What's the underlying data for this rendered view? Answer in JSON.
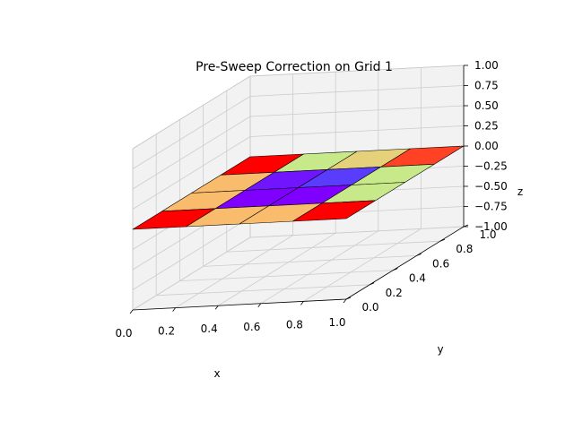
{
  "chart_data": {
    "type": "surface",
    "title": "Pre-Sweep Correction on Grid 1",
    "xlabel": "x",
    "ylabel": "y",
    "zlabel": "z",
    "xlim": [
      0,
      1
    ],
    "ylim": [
      0,
      1
    ],
    "zlim": [
      -1,
      1
    ],
    "x_ticks": [
      0.0,
      0.2,
      0.4,
      0.6,
      0.8,
      1.0
    ],
    "x_tick_labels": [
      "0.0",
      "0.2",
      "0.4",
      "0.6",
      "0.8",
      "1.0"
    ],
    "y_ticks": [
      0.0,
      0.2,
      0.4,
      0.6,
      0.8,
      1.0
    ],
    "y_tick_labels": [
      "0.0",
      "0.2",
      "0.4",
      "0.6",
      "0.8",
      "1.0"
    ],
    "z_ticks": [
      -1.0,
      -0.75,
      -0.5,
      -0.25,
      0.0,
      0.25,
      0.5,
      0.75,
      1.0
    ],
    "z_tick_labels": [
      "−1.00",
      "−0.75",
      "−0.50",
      "−0.25",
      "0.00",
      "0.25",
      "0.50",
      "0.75",
      "1.00"
    ],
    "grid": true,
    "x": [
      0.0,
      0.25,
      0.5,
      0.75,
      1.0
    ],
    "y": [
      0.0,
      0.25,
      0.5,
      0.75,
      1.0
    ],
    "z": [
      [
        0,
        0,
        0,
        0,
        0
      ],
      [
        0,
        0,
        0,
        0,
        0
      ],
      [
        0,
        0,
        0,
        0,
        0
      ],
      [
        0,
        0,
        0,
        0,
        0
      ],
      [
        0,
        0,
        0,
        0,
        0
      ]
    ],
    "cell_colors": [
      [
        "#ff0000",
        "#f8bc6c",
        "#f8bc6c",
        "#ff0000"
      ],
      [
        "#f8bc6c",
        "#7f00ff",
        "#7015fe",
        "#c8e98a"
      ],
      [
        "#f8bc6c",
        "#7f00ff",
        "#5a3cfc",
        "#e5d17a"
      ],
      [
        "#ff0000",
        "#c8e98a",
        "#c8e98a",
        "#ff4124"
      ]
    ],
    "colormap": "rainbow",
    "pane_color": "#f2f2f2",
    "grid_color": "#cccccc"
  }
}
